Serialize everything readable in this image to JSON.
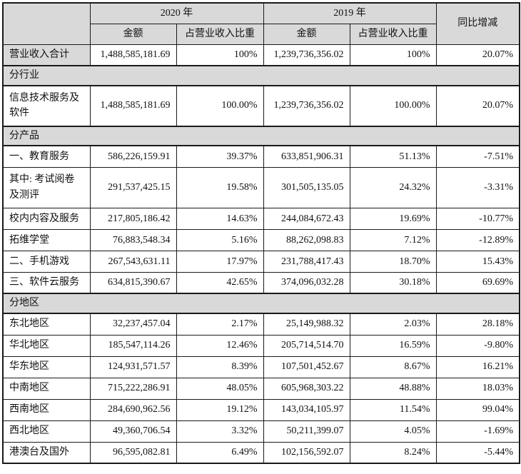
{
  "colors": {
    "header_bg": "#d9d9d9",
    "border": "#1a1a1a",
    "row_bg": "#ffffff"
  },
  "table": {
    "header": {
      "col_2020": "2020 年",
      "col_2019": "2019 年",
      "col_yoy": "同比增减",
      "amount": "金额",
      "ratio": "占营业收入比重"
    },
    "rows": [
      {
        "type": "data",
        "label": "营业收入合计",
        "label_gray": true,
        "amount_2020": "1,488,585,181.69",
        "ratio_2020": "100%",
        "amount_2019": "1,239,736,356.02",
        "ratio_2019": "100%",
        "yoy": "20.07%"
      },
      {
        "type": "section",
        "label": "分行业"
      },
      {
        "type": "data",
        "label": "信息技术服务及软件",
        "tall": true,
        "amount_2020": "1,488,585,181.69",
        "ratio_2020": "100.00%",
        "amount_2019": "1,239,736,356.02",
        "ratio_2019": "100.00%",
        "yoy": "20.07%"
      },
      {
        "type": "section",
        "label": "分产品"
      },
      {
        "type": "data",
        "label": "一、教育服务",
        "amount_2020": "586,226,159.91",
        "ratio_2020": "39.37%",
        "amount_2019": "633,851,906.31",
        "ratio_2019": "51.13%",
        "yoy": "-7.51%"
      },
      {
        "type": "data",
        "label": "其中: 考试阅卷及测评",
        "tall": true,
        "amount_2020": "291,537,425.15",
        "ratio_2020": "19.58%",
        "amount_2019": "301,505,135.05",
        "ratio_2019": "24.32%",
        "yoy": "-3.31%"
      },
      {
        "type": "data",
        "label": "校内内容及服务",
        "amount_2020": "217,805,186.42",
        "ratio_2020": "14.63%",
        "amount_2019": "244,084,672.43",
        "ratio_2019": "19.69%",
        "yoy": "-10.77%"
      },
      {
        "type": "data",
        "label": "拓维学堂",
        "amount_2020": "76,883,548.34",
        "ratio_2020": "5.16%",
        "amount_2019": "88,262,098.83",
        "ratio_2019": "7.12%",
        "yoy": "-12.89%"
      },
      {
        "type": "data",
        "label": "二、手机游戏",
        "amount_2020": "267,543,631.11",
        "ratio_2020": "17.97%",
        "amount_2019": "231,788,417.43",
        "ratio_2019": "18.70%",
        "yoy": "15.43%"
      },
      {
        "type": "data",
        "label": "三、软件云服务",
        "amount_2020": "634,815,390.67",
        "ratio_2020": "42.65%",
        "amount_2019": "374,096,032.28",
        "ratio_2019": "30.18%",
        "yoy": "69.69%"
      },
      {
        "type": "section",
        "label": "分地区"
      },
      {
        "type": "data",
        "label": "东北地区",
        "amount_2020": "32,237,457.04",
        "ratio_2020": "2.17%",
        "amount_2019": "25,149,988.32",
        "ratio_2019": "2.03%",
        "yoy": "28.18%"
      },
      {
        "type": "data",
        "label": "华北地区",
        "amount_2020": "185,547,114.26",
        "ratio_2020": "12.46%",
        "amount_2019": "205,714,514.70",
        "ratio_2019": "16.59%",
        "yoy": "-9.80%"
      },
      {
        "type": "data",
        "label": "华东地区",
        "amount_2020": "124,931,571.57",
        "ratio_2020": "8.39%",
        "amount_2019": "107,501,452.67",
        "ratio_2019": "8.67%",
        "yoy": "16.21%"
      },
      {
        "type": "data",
        "label": "中南地区",
        "amount_2020": "715,222,286.91",
        "ratio_2020": "48.05%",
        "amount_2019": "605,968,303.22",
        "ratio_2019": "48.88%",
        "yoy": "18.03%"
      },
      {
        "type": "data",
        "label": "西南地区",
        "amount_2020": "284,690,962.56",
        "ratio_2020": "19.12%",
        "amount_2019": "143,034,105.97",
        "ratio_2019": "11.54%",
        "yoy": "99.04%"
      },
      {
        "type": "data",
        "label": "西北地区",
        "amount_2020": "49,360,706.54",
        "ratio_2020": "3.32%",
        "amount_2019": "50,211,399.07",
        "ratio_2019": "4.05%",
        "yoy": "-1.69%"
      },
      {
        "type": "data",
        "label": "港澳台及国外",
        "amount_2020": "96,595,082.81",
        "ratio_2020": "6.49%",
        "amount_2019": "102,156,592.07",
        "ratio_2019": "8.24%",
        "yoy": "-5.44%"
      }
    ]
  }
}
